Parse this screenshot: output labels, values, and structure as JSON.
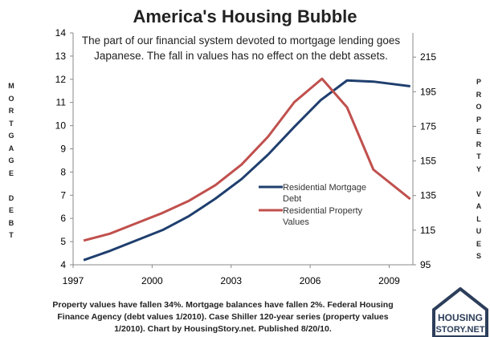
{
  "chart_data": {
    "type": "line",
    "title": "America's Housing Bubble",
    "subtitle": "The part of our financial system devoted to mortgage lending goes Japanese. The fall in values has no effect on the debt assets.",
    "ylabel_left": "MORTGAGE DEBT",
    "ylabel_right": "PROPERTY VALUES",
    "xlim": [
      1997,
      2009.9
    ],
    "ylim_left": [
      4,
      14
    ],
    "ylim_right": [
      95,
      229
    ],
    "x_ticks": [
      1997,
      2000,
      2003,
      2006,
      2009
    ],
    "y_ticks_left": [
      4,
      5,
      6,
      7,
      8,
      9,
      10,
      11,
      12,
      13,
      14
    ],
    "y_ticks_right": [
      95,
      115,
      135,
      155,
      175,
      195,
      215
    ],
    "grid": false,
    "legend_position": "center-right",
    "series": [
      {
        "name": "Residential Mortgage Debt",
        "axis": "left",
        "color": "#1f3f6e",
        "x": [
          1997.4,
          1998.4,
          1999.4,
          2000.4,
          2001.4,
          2002.4,
          2003.4,
          2004.4,
          2005.4,
          2006.4,
          2007.4,
          2008.4,
          2009.8
        ],
        "values": [
          4.2,
          4.6,
          5.05,
          5.5,
          6.1,
          6.85,
          7.7,
          8.75,
          9.95,
          11.1,
          11.95,
          11.9,
          11.7
        ]
      },
      {
        "name": "Residential Property Values",
        "axis": "right",
        "color": "#c0504d",
        "x": [
          1997.4,
          1998.4,
          1999.4,
          2000.4,
          2001.4,
          2002.4,
          2003.4,
          2004.4,
          2005.4,
          2006.45,
          2007.4,
          2008.4,
          2009.8
        ],
        "values": [
          109,
          113,
          119,
          125,
          132,
          141,
          153,
          169,
          189,
          202.5,
          186,
          150,
          133
        ]
      }
    ]
  },
  "footnote": "Property values have fallen 34%. Mortgage balances have fallen 2%. Federal Housing Finance Agency  (debt values 1/2010). Case Shiller 120-year series (property values 1/2010). Chart by HousingStory.net. Published  8/20/10.",
  "logo": {
    "line1": "HOUSING",
    "line2": "STORY.NET"
  }
}
